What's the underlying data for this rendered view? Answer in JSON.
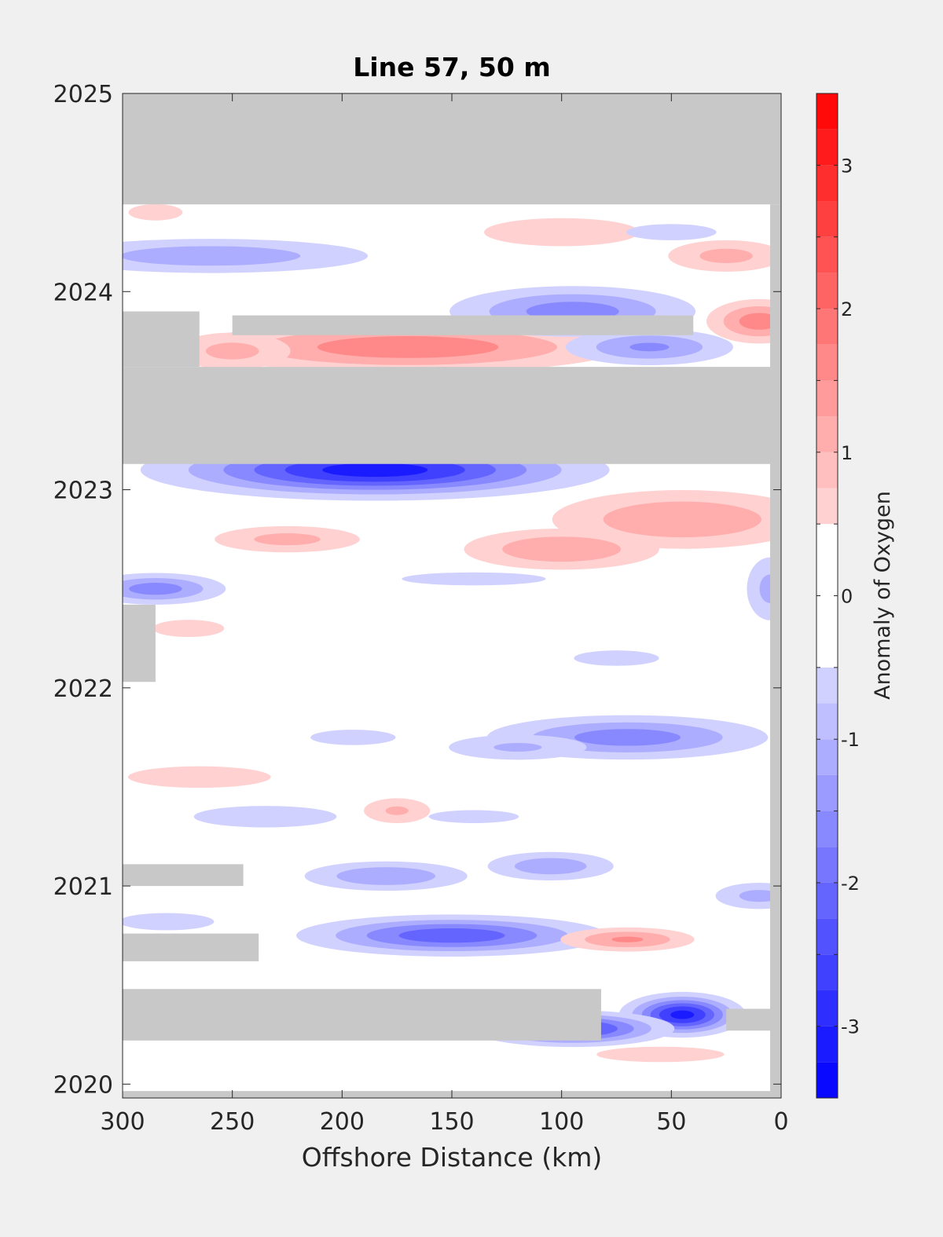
{
  "chart_data": {
    "type": "heatmap",
    "title": "Line 57, 50 m",
    "xlabel": "Offshore Distance (km)",
    "ylabel": "",
    "colorbar_label": "Anomaly of Oxygen",
    "xlim": [
      300,
      0
    ],
    "x_reversed": true,
    "ylim": [
      2019.93,
      2025
    ],
    "x_ticks": [
      "300",
      "250",
      "200",
      "150",
      "100",
      "50",
      "0"
    ],
    "x_tick_values": [
      300,
      250,
      200,
      150,
      100,
      50,
      0
    ],
    "y_ticks": [
      "2020",
      "2021",
      "2022",
      "2023",
      "2024",
      "2025"
    ],
    "y_tick_values": [
      2020,
      2021,
      2022,
      2023,
      2024,
      2025
    ],
    "clim": [
      -3.5,
      3.5
    ],
    "colorbar_ticks": [
      "-3",
      "-2",
      "-1",
      "0",
      "1",
      "2",
      "3"
    ],
    "colorbar_tick_values": [
      -3,
      -2,
      -1,
      0,
      1,
      2,
      3
    ],
    "contour_step": 0.25,
    "colormap": {
      "negative": "#0000ff",
      "zero": "#ffffff",
      "positive": "#ff0000"
    },
    "missing_color": "#c8c8c8",
    "missing_regions": [
      {
        "x": [
          300,
          0
        ],
        "y": [
          2024.44,
          2025
        ]
      },
      {
        "x": [
          300,
          0
        ],
        "y": [
          2023.13,
          2023.62
        ]
      },
      {
        "x": [
          300,
          265
        ],
        "y": [
          2023.62,
          2023.9
        ]
      },
      {
        "x": [
          250,
          40
        ],
        "y": [
          2023.78,
          2023.88
        ]
      },
      {
        "x": [
          300,
          285
        ],
        "y": [
          2022.03,
          2022.42
        ]
      },
      {
        "x": [
          300,
          245
        ],
        "y": [
          2021.0,
          2021.11
        ]
      },
      {
        "x": [
          300,
          238
        ],
        "y": [
          2020.62,
          2020.76
        ]
      },
      {
        "x": [
          300,
          82
        ],
        "y": [
          2020.22,
          2020.48
        ]
      },
      {
        "x": [
          25,
          0
        ],
        "y": [
          2020.27,
          2020.38
        ]
      },
      {
        "x": [
          5,
          0
        ],
        "y": [
          2019.93,
          2024.44
        ]
      },
      {
        "x": [
          300,
          0
        ],
        "y": [
          2019.93,
          2019.965
        ]
      }
    ],
    "anomalies": [
      {
        "x": 185,
        "y": 2023.1,
        "sx": 55,
        "sy": 0.08,
        "value": -3.3
      },
      {
        "x": 170,
        "y": 2023.72,
        "sx": 60,
        "sy": 0.08,
        "value": 1.9
      },
      {
        "x": 250,
        "y": 2023.7,
        "sx": 20,
        "sy": 0.07,
        "value": 1.2
      },
      {
        "x": 95,
        "y": 2023.9,
        "sx": 35,
        "sy": 0.08,
        "value": -1.8
      },
      {
        "x": 60,
        "y": 2023.72,
        "sx": 25,
        "sy": 0.06,
        "value": -1.6
      },
      {
        "x": 10,
        "y": 2023.85,
        "sx": 15,
        "sy": 0.07,
        "value": 1.8
      },
      {
        "x": 260,
        "y": 2024.18,
        "sx": 50,
        "sy": 0.06,
        "value": -1.4
      },
      {
        "x": 100,
        "y": 2024.3,
        "sx": 30,
        "sy": 0.06,
        "value": 1.0
      },
      {
        "x": 25,
        "y": 2024.18,
        "sx": 20,
        "sy": 0.06,
        "value": 1.2
      },
      {
        "x": 50,
        "y": 2024.3,
        "sx": 25,
        "sy": 0.05,
        "value": -0.7
      },
      {
        "x": 285,
        "y": 2024.4,
        "sx": 15,
        "sy": 0.05,
        "value": 0.7
      },
      {
        "x": 45,
        "y": 2022.85,
        "sx": 40,
        "sy": 0.1,
        "value": 1.5
      },
      {
        "x": 100,
        "y": 2022.7,
        "sx": 30,
        "sy": 0.07,
        "value": 1.5
      },
      {
        "x": 225,
        "y": 2022.75,
        "sx": 25,
        "sy": 0.05,
        "value": 1.2
      },
      {
        "x": 285,
        "y": 2022.5,
        "sx": 20,
        "sy": 0.05,
        "value": -1.8
      },
      {
        "x": 5,
        "y": 2022.5,
        "sx": 8,
        "sy": 0.12,
        "value": -1.2
      },
      {
        "x": 270,
        "y": 2022.3,
        "sx": 15,
        "sy": 0.04,
        "value": 0.9
      },
      {
        "x": 140,
        "y": 2022.55,
        "sx": 40,
        "sy": 0.04,
        "value": -0.7
      },
      {
        "x": 70,
        "y": 2021.75,
        "sx": 40,
        "sy": 0.07,
        "value": -1.8
      },
      {
        "x": 120,
        "y": 2021.7,
        "sx": 25,
        "sy": 0.05,
        "value": -1.1
      },
      {
        "x": 195,
        "y": 2021.75,
        "sx": 20,
        "sy": 0.04,
        "value": -0.8
      },
      {
        "x": 75,
        "y": 2022.15,
        "sx": 20,
        "sy": 0.04,
        "value": -0.8
      },
      {
        "x": 265,
        "y": 2021.55,
        "sx": 30,
        "sy": 0.05,
        "value": 0.9
      },
      {
        "x": 235,
        "y": 2021.35,
        "sx": 30,
        "sy": 0.05,
        "value": -0.9
      },
      {
        "x": 175,
        "y": 2021.38,
        "sx": 12,
        "sy": 0.05,
        "value": 1.1
      },
      {
        "x": 140,
        "y": 2021.35,
        "sx": 25,
        "sy": 0.04,
        "value": -0.7
      },
      {
        "x": 180,
        "y": 2021.05,
        "sx": 25,
        "sy": 0.05,
        "value": -1.5
      },
      {
        "x": 105,
        "y": 2021.1,
        "sx": 20,
        "sy": 0.05,
        "value": -1.4
      },
      {
        "x": 10,
        "y": 2020.95,
        "sx": 15,
        "sy": 0.05,
        "value": -1.2
      },
      {
        "x": 150,
        "y": 2020.75,
        "sx": 40,
        "sy": 0.06,
        "value": -2.4
      },
      {
        "x": 70,
        "y": 2020.73,
        "sx": 20,
        "sy": 0.04,
        "value": 1.6
      },
      {
        "x": 280,
        "y": 2020.82,
        "sx": 20,
        "sy": 0.04,
        "value": -0.9
      },
      {
        "x": 45,
        "y": 2020.35,
        "sx": 15,
        "sy": 0.06,
        "value": -3.2
      },
      {
        "x": 95,
        "y": 2020.28,
        "sx": 25,
        "sy": 0.05,
        "value": -2.8
      },
      {
        "x": 55,
        "y": 2020.15,
        "sx": 30,
        "sy": 0.04,
        "value": 0.8
      },
      {
        "x": 250,
        "y": 2020.06,
        "sx": 30,
        "sy": 0.03,
        "value": -0.5
      }
    ]
  }
}
